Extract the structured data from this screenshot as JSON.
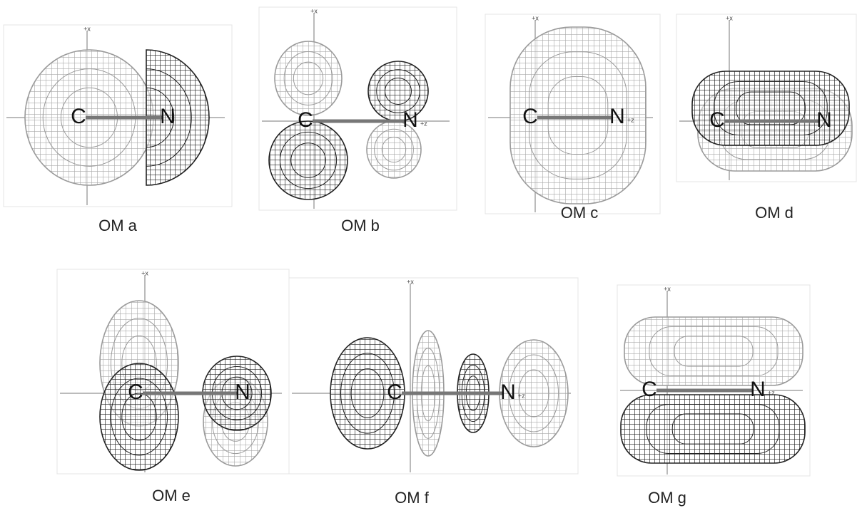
{
  "panels": [
    {
      "caption": "OM a",
      "atoms": [
        "C",
        "N"
      ],
      "axes": [
        "+x"
      ]
    },
    {
      "caption": "OM b",
      "atoms": [
        "C",
        "N"
      ],
      "axes": [
        "+x",
        "+z"
      ]
    },
    {
      "caption": "OM c",
      "atoms": [
        "C",
        "N"
      ],
      "axes": [
        "+x",
        "+z"
      ]
    },
    {
      "caption": "OM d",
      "atoms": [
        "C",
        "N"
      ],
      "axes": [
        "+x"
      ]
    },
    {
      "caption": "OM e",
      "atoms": [
        "C",
        "N"
      ],
      "axes": [
        "+x"
      ]
    },
    {
      "caption": "OM f",
      "atoms": [
        "C",
        "N"
      ],
      "axes": [
        "+x",
        "+z"
      ]
    },
    {
      "caption": "OM g",
      "atoms": [
        "C",
        "N"
      ],
      "axes": [
        "+x",
        "+z"
      ]
    }
  ]
}
